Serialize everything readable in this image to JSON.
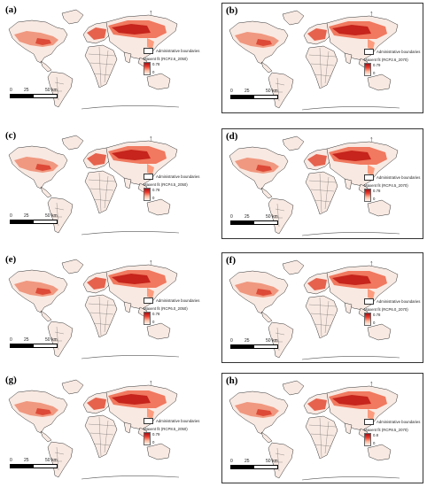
{
  "colors": {
    "ramp_high": "#a50f15",
    "ramp_low": "#fff5f0",
    "land": "#f8e9e2",
    "hot": "#d7301f",
    "mid": "#f4a582",
    "border": "#333333"
  },
  "legend": {
    "boundary_label": "Administrative boundaries"
  },
  "scale": {
    "zero": "0",
    "mid": "25",
    "end": "50 km"
  },
  "panels": [
    {
      "label": "(a)",
      "title": "Maxent fit (RCP2.6_2050)",
      "max": "0.78",
      "min": "0"
    },
    {
      "label": "(b)",
      "title": "Maxent fit (RCP2.6_2070)",
      "max": "0.79",
      "min": "0"
    },
    {
      "label": "(c)",
      "title": "Maxent fit (RCP4.5_2050)",
      "max": "0.78",
      "min": "0"
    },
    {
      "label": "(d)",
      "title": "Maxent fit (RCP4.5_2070)",
      "max": "0.78",
      "min": "0"
    },
    {
      "label": "(e)",
      "title": "Maxent fit (RCP6.0_2050)",
      "max": "0.78",
      "min": "0"
    },
    {
      "label": "(f)",
      "title": "Maxent fit (RCP6.0_2070)",
      "max": "0.78",
      "min": "0"
    },
    {
      "label": "(g)",
      "title": "Maxent fit (RCP8.5_2050)",
      "max": "0.79",
      "min": "0"
    },
    {
      "label": "(h)",
      "title": "Maxent fit (RCP8.5_2070)",
      "max": "0.8",
      "min": "0"
    }
  ]
}
